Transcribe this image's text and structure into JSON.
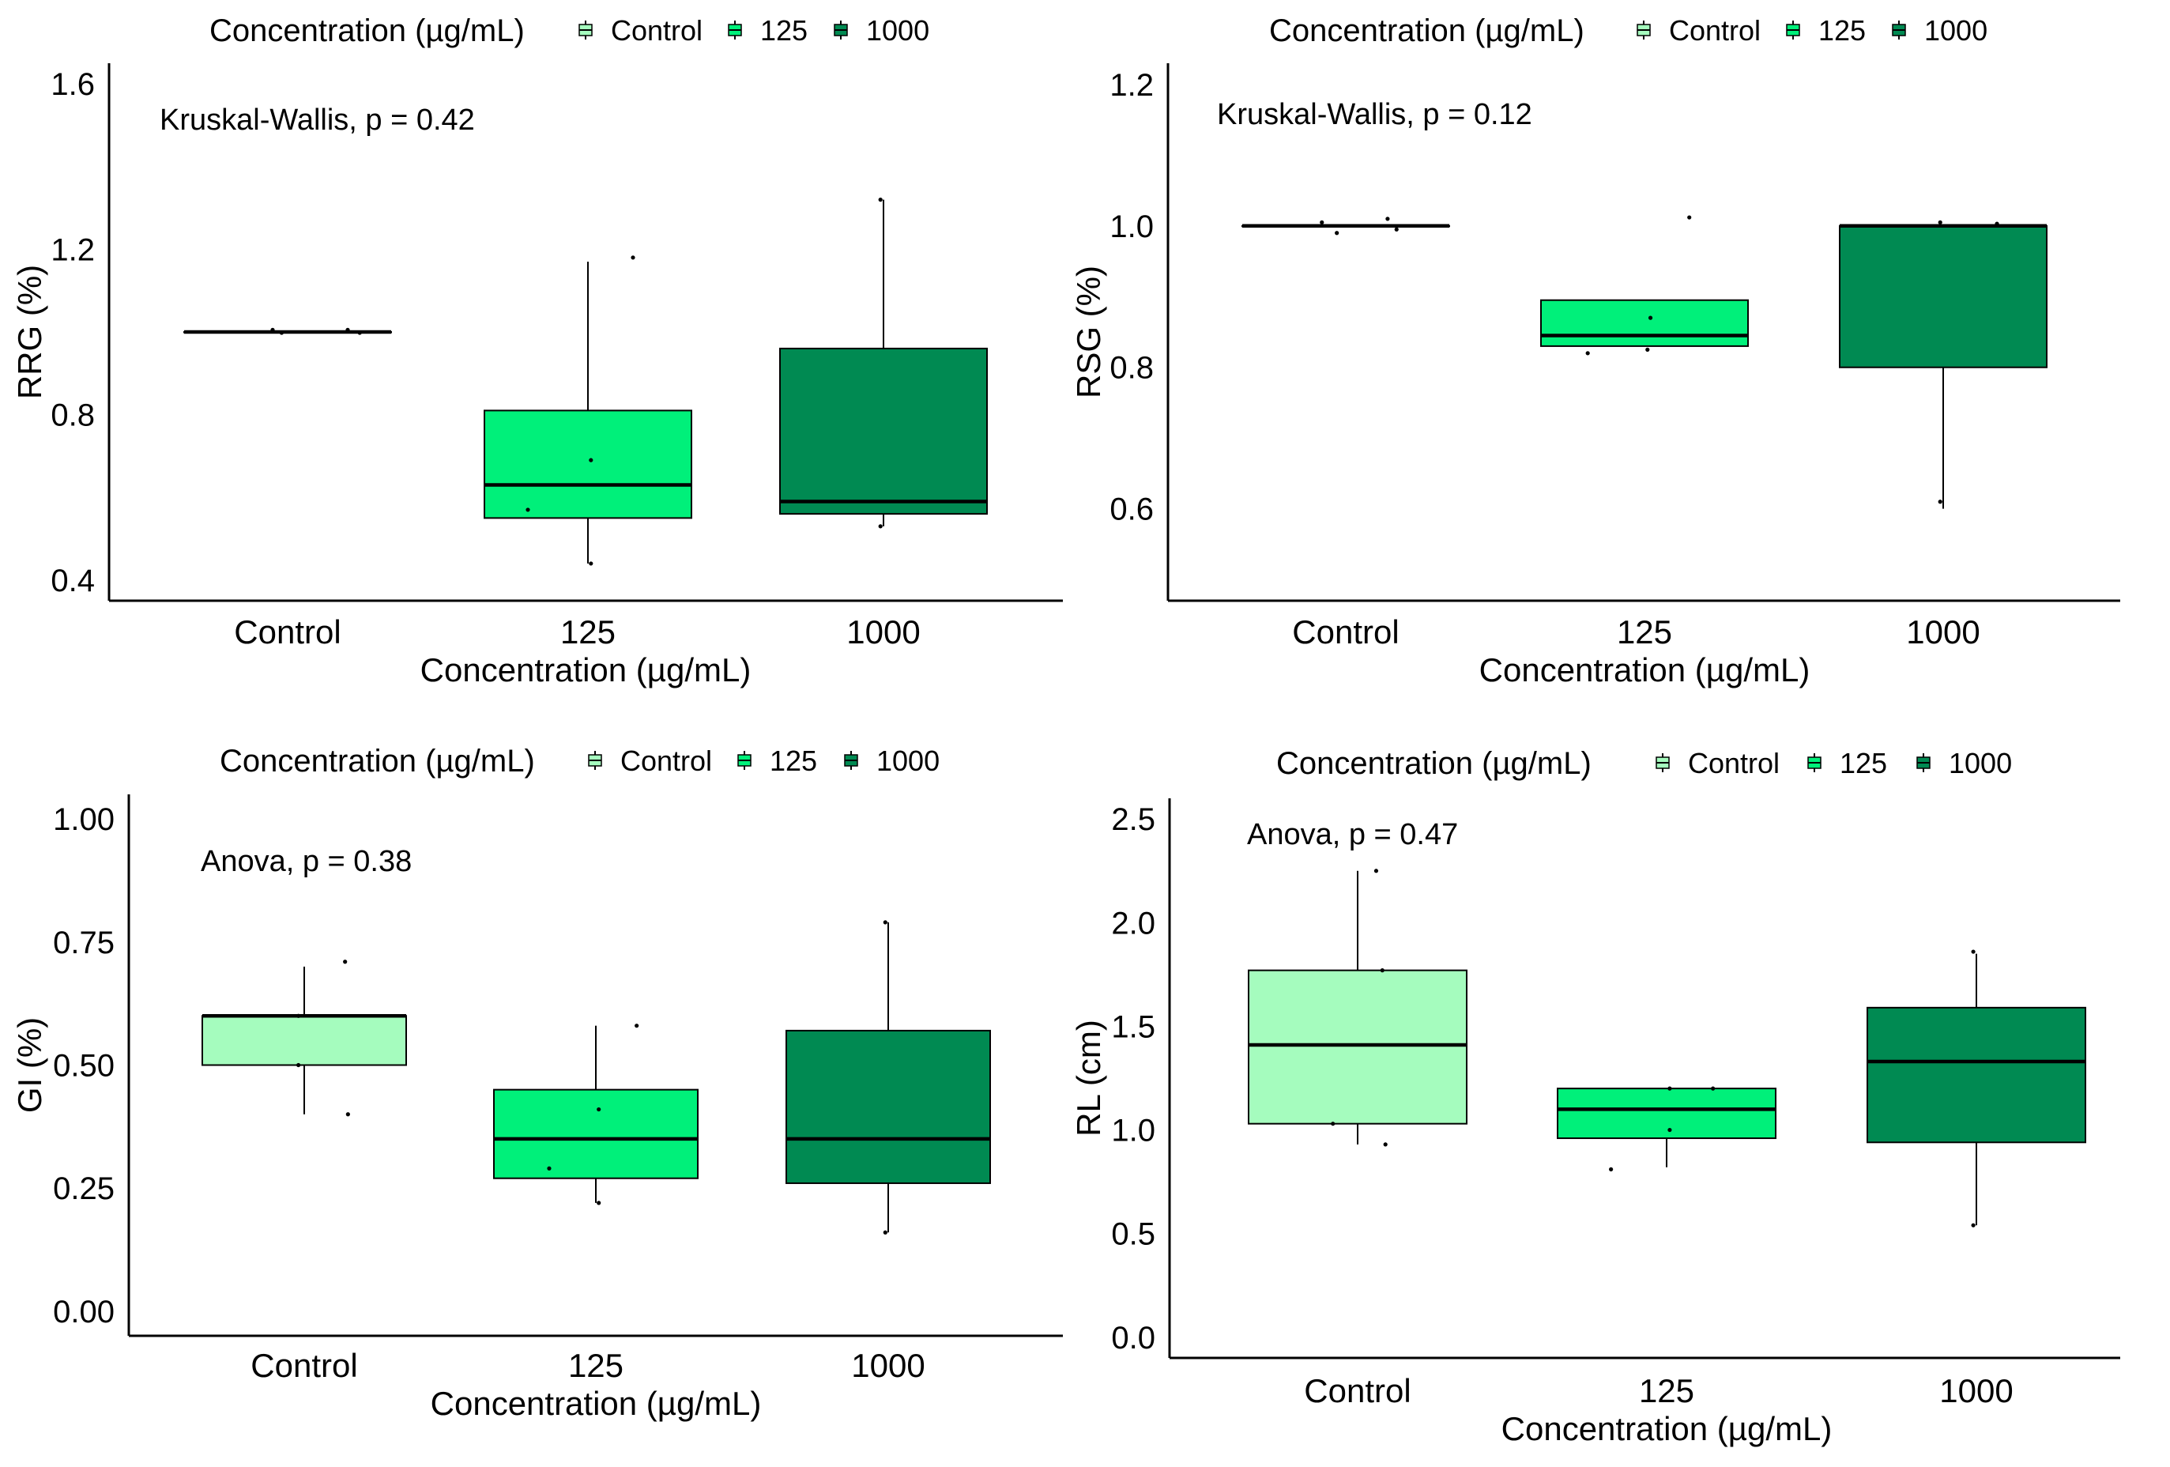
{
  "colors": {
    "Control": "#a5fcbe",
    "125": "#00f07a",
    "1000": "#008a52",
    "median": "#000000",
    "axis": "#000000"
  },
  "chart_data": [
    {
      "type": "box",
      "legend_title": "Concentration (µg/mL)",
      "legend": [
        "Control",
        "125",
        "1000"
      ],
      "xlabel": "Concentration (µg/mL)",
      "ylabel": "RRG (%)",
      "categories": [
        "Control",
        "125",
        "1000"
      ],
      "ylim": [
        0.35,
        1.65
      ],
      "yticks": [
        0.4,
        0.8,
        1.2,
        1.6
      ],
      "yticklabels": [
        "0.4",
        "0.8",
        "1.2",
        "1.6"
      ],
      "annotation": "Kruskal-Wallis, p = 0.42",
      "boxes": [
        {
          "category": "Control",
          "min": 1.0,
          "q1": 1.0,
          "median": 1.0,
          "q3": 1.0,
          "max": 1.0
        },
        {
          "category": "125",
          "min": 0.44,
          "q1": 0.55,
          "median": 0.63,
          "q3": 0.81,
          "max": 1.17
        },
        {
          "category": "1000",
          "min": 0.53,
          "q1": 0.56,
          "median": 0.59,
          "q3": 0.96,
          "max": 1.32
        }
      ],
      "points": [
        {
          "category": "Control",
          "dx": -0.05,
          "y": 1.005
        },
        {
          "category": "Control",
          "dx": -0.02,
          "y": 0.998
        },
        {
          "category": "Control",
          "dx": 0.2,
          "y": 1.005
        },
        {
          "category": "Control",
          "dx": 0.24,
          "y": 0.998
        },
        {
          "category": "125",
          "dx": -0.2,
          "y": 0.57
        },
        {
          "category": "125",
          "dx": 0.01,
          "y": 0.69
        },
        {
          "category": "125",
          "dx": 0.15,
          "y": 1.18
        },
        {
          "category": "125",
          "dx": 0.01,
          "y": 0.44
        },
        {
          "category": "1000",
          "dx": -0.01,
          "y": 0.53
        },
        {
          "category": "1000",
          "dx": -0.01,
          "y": 1.32
        }
      ]
    },
    {
      "type": "box",
      "legend_title": "Concentration (µg/mL)",
      "legend": [
        "Control",
        "125",
        "1000"
      ],
      "xlabel": "Concentration (µg/mL)",
      "ylabel": "RSG (%)",
      "categories": [
        "Control",
        "125",
        "1000"
      ],
      "ylim": [
        0.47,
        1.23
      ],
      "yticks": [
        0.6,
        0.8,
        1.0,
        1.2
      ],
      "yticklabels": [
        "0.6",
        "0.8",
        "1.0",
        "1.2"
      ],
      "annotation": "Kruskal-Wallis, p = 0.12",
      "boxes": [
        {
          "category": "Control",
          "min": 1.0,
          "q1": 1.0,
          "median": 1.0,
          "q3": 1.0,
          "max": 1.0
        },
        {
          "category": "125",
          "min": 0.83,
          "q1": 0.83,
          "median": 0.845,
          "q3": 0.895,
          "max": 0.895
        },
        {
          "category": "1000",
          "min": 0.6,
          "q1": 0.8,
          "median": 1.0,
          "q3": 1.0,
          "max": 1.0
        }
      ],
      "points": [
        {
          "category": "Control",
          "dx": -0.08,
          "y": 1.005
        },
        {
          "category": "Control",
          "dx": -0.03,
          "y": 0.99
        },
        {
          "category": "Control",
          "dx": 0.14,
          "y": 1.01
        },
        {
          "category": "Control",
          "dx": 0.17,
          "y": 0.995
        },
        {
          "category": "125",
          "dx": -0.19,
          "y": 0.82
        },
        {
          "category": "125",
          "dx": 0.01,
          "y": 0.825
        },
        {
          "category": "125",
          "dx": 0.02,
          "y": 0.87
        },
        {
          "category": "125",
          "dx": 0.15,
          "y": 1.012
        },
        {
          "category": "1000",
          "dx": -0.01,
          "y": 0.61
        },
        {
          "category": "1000",
          "dx": -0.01,
          "y": 1.005
        },
        {
          "category": "1000",
          "dx": 0.18,
          "y": 1.003
        }
      ]
    },
    {
      "type": "box",
      "legend_title": "Concentration (µg/mL)",
      "legend": [
        "Control",
        "125",
        "1000"
      ],
      "xlabel": "Concentration (µg/mL)",
      "ylabel": "GI (%)",
      "categories": [
        "Control",
        "125",
        "1000"
      ],
      "ylim": [
        -0.05,
        1.05
      ],
      "yticks": [
        0.0,
        0.25,
        0.5,
        0.75,
        1.0
      ],
      "yticklabels": [
        "0.00",
        "0.25",
        "0.50",
        "0.75",
        "1.00"
      ],
      "annotation": "Anova, p = 0.38",
      "boxes": [
        {
          "category": "Control",
          "min": 0.4,
          "q1": 0.5,
          "median": 0.6,
          "q3": 0.6,
          "max": 0.7
        },
        {
          "category": "125",
          "min": 0.22,
          "q1": 0.27,
          "median": 0.35,
          "q3": 0.45,
          "max": 0.58
        },
        {
          "category": "1000",
          "min": 0.16,
          "q1": 0.26,
          "median": 0.35,
          "q3": 0.57,
          "max": 0.79
        }
      ],
      "points": [
        {
          "category": "Control",
          "dx": -0.02,
          "y": 0.6
        },
        {
          "category": "Control",
          "dx": -0.02,
          "y": 0.5
        },
        {
          "category": "Control",
          "dx": 0.14,
          "y": 0.71
        },
        {
          "category": "Control",
          "dx": 0.15,
          "y": 0.4
        },
        {
          "category": "125",
          "dx": -0.16,
          "y": 0.29
        },
        {
          "category": "125",
          "dx": 0.01,
          "y": 0.22
        },
        {
          "category": "125",
          "dx": 0.01,
          "y": 0.41
        },
        {
          "category": "125",
          "dx": 0.14,
          "y": 0.58
        },
        {
          "category": "1000",
          "dx": -0.01,
          "y": 0.16
        },
        {
          "category": "1000",
          "dx": -0.01,
          "y": 0.79
        }
      ]
    },
    {
      "type": "box",
      "legend_title": "Concentration (µg/mL)",
      "legend": [
        "Control",
        "125",
        "1000"
      ],
      "xlabel": "Concentration (µg/mL)",
      "ylabel": "RL (cm)",
      "categories": [
        "Control",
        "125",
        "1000"
      ],
      "ylim": [
        -0.1,
        2.6
      ],
      "yticks": [
        0.0,
        0.5,
        1.0,
        1.5,
        2.0,
        2.5
      ],
      "yticklabels": [
        "0.0",
        "0.5",
        "1.0",
        "1.5",
        "2.0",
        "2.5"
      ],
      "annotation": "Anova, p = 0.47",
      "boxes": [
        {
          "category": "Control",
          "min": 0.93,
          "q1": 1.03,
          "median": 1.41,
          "q3": 1.77,
          "max": 2.25
        },
        {
          "category": "125",
          "min": 0.82,
          "q1": 0.96,
          "median": 1.1,
          "q3": 1.2,
          "max": 1.2
        },
        {
          "category": "1000",
          "min": 0.54,
          "q1": 0.94,
          "median": 1.33,
          "q3": 1.59,
          "max": 1.85
        }
      ],
      "points": [
        {
          "category": "Control",
          "dx": -0.08,
          "y": 1.03
        },
        {
          "category": "Control",
          "dx": 0.06,
          "y": 2.25
        },
        {
          "category": "Control",
          "dx": 0.08,
          "y": 1.77
        },
        {
          "category": "Control",
          "dx": 0.09,
          "y": 0.93
        },
        {
          "category": "125",
          "dx": -0.18,
          "y": 0.81
        },
        {
          "category": "125",
          "dx": 0.01,
          "y": 1.0
        },
        {
          "category": "125",
          "dx": 0.01,
          "y": 1.2
        },
        {
          "category": "125",
          "dx": 0.15,
          "y": 1.2
        },
        {
          "category": "1000",
          "dx": -0.01,
          "y": 0.54
        },
        {
          "category": "1000",
          "dx": -0.01,
          "y": 1.86
        }
      ]
    }
  ]
}
